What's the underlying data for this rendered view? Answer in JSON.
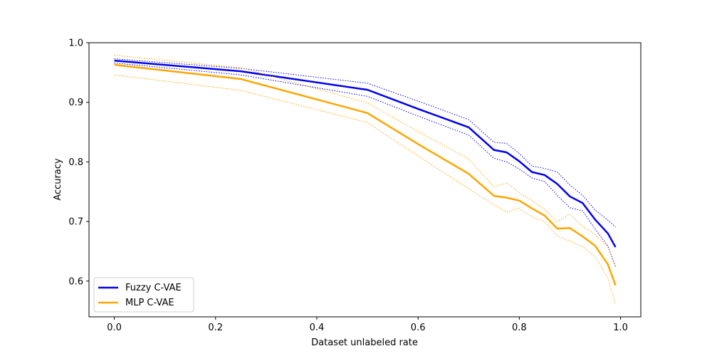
{
  "chart_data": {
    "type": "line",
    "title": "",
    "xlabel": "Dataset unlabeled rate",
    "ylabel": "Accuracy",
    "xlim": [
      -0.05,
      1.04
    ],
    "ylim": [
      0.54,
      1.0
    ],
    "xticks": [
      0.0,
      0.2,
      0.4,
      0.6,
      0.8,
      1.0
    ],
    "xtick_labels": [
      "0.0",
      "0.2",
      "0.4",
      "0.6",
      "0.8",
      "1.0"
    ],
    "yticks": [
      0.6,
      0.7,
      0.8,
      0.9,
      1.0
    ],
    "ytick_labels": [
      "0.6",
      "0.7",
      "0.8",
      "0.9",
      "1.0"
    ],
    "grid": false,
    "legend": {
      "placement": "lower-left"
    },
    "x": [
      0.0,
      0.25,
      0.5,
      0.6,
      0.7,
      0.75,
      0.775,
      0.8,
      0.825,
      0.85,
      0.875,
      0.9,
      0.925,
      0.95,
      0.975,
      0.99
    ],
    "series": [
      {
        "name": "Fuzzy C-VAE",
        "color": "#0000ee",
        "values": [
          0.97,
          0.952,
          0.921,
          0.889,
          0.858,
          0.82,
          0.816,
          0.801,
          0.783,
          0.778,
          0.763,
          0.742,
          0.731,
          0.703,
          0.68,
          0.657
        ],
        "upper": [
          0.973,
          0.957,
          0.932,
          0.902,
          0.871,
          0.833,
          0.831,
          0.814,
          0.793,
          0.789,
          0.783,
          0.761,
          0.744,
          0.719,
          0.702,
          0.691
        ],
        "lower": [
          0.966,
          0.946,
          0.91,
          0.877,
          0.845,
          0.806,
          0.8,
          0.788,
          0.773,
          0.767,
          0.744,
          0.723,
          0.718,
          0.687,
          0.659,
          0.624
        ]
      },
      {
        "name": "MLP C-VAE",
        "color": "#ffa500",
        "values": [
          0.963,
          0.939,
          0.882,
          0.83,
          0.78,
          0.743,
          0.74,
          0.735,
          0.722,
          0.71,
          0.688,
          0.689,
          0.675,
          0.659,
          0.628,
          0.593
        ],
        "upper": [
          0.979,
          0.958,
          0.899,
          0.851,
          0.805,
          0.758,
          0.765,
          0.748,
          0.735,
          0.72,
          0.7,
          0.712,
          0.692,
          0.678,
          0.657,
          0.625
        ],
        "lower": [
          0.946,
          0.92,
          0.866,
          0.81,
          0.755,
          0.728,
          0.716,
          0.722,
          0.708,
          0.7,
          0.676,
          0.667,
          0.658,
          0.641,
          0.605,
          0.561
        ]
      }
    ]
  }
}
